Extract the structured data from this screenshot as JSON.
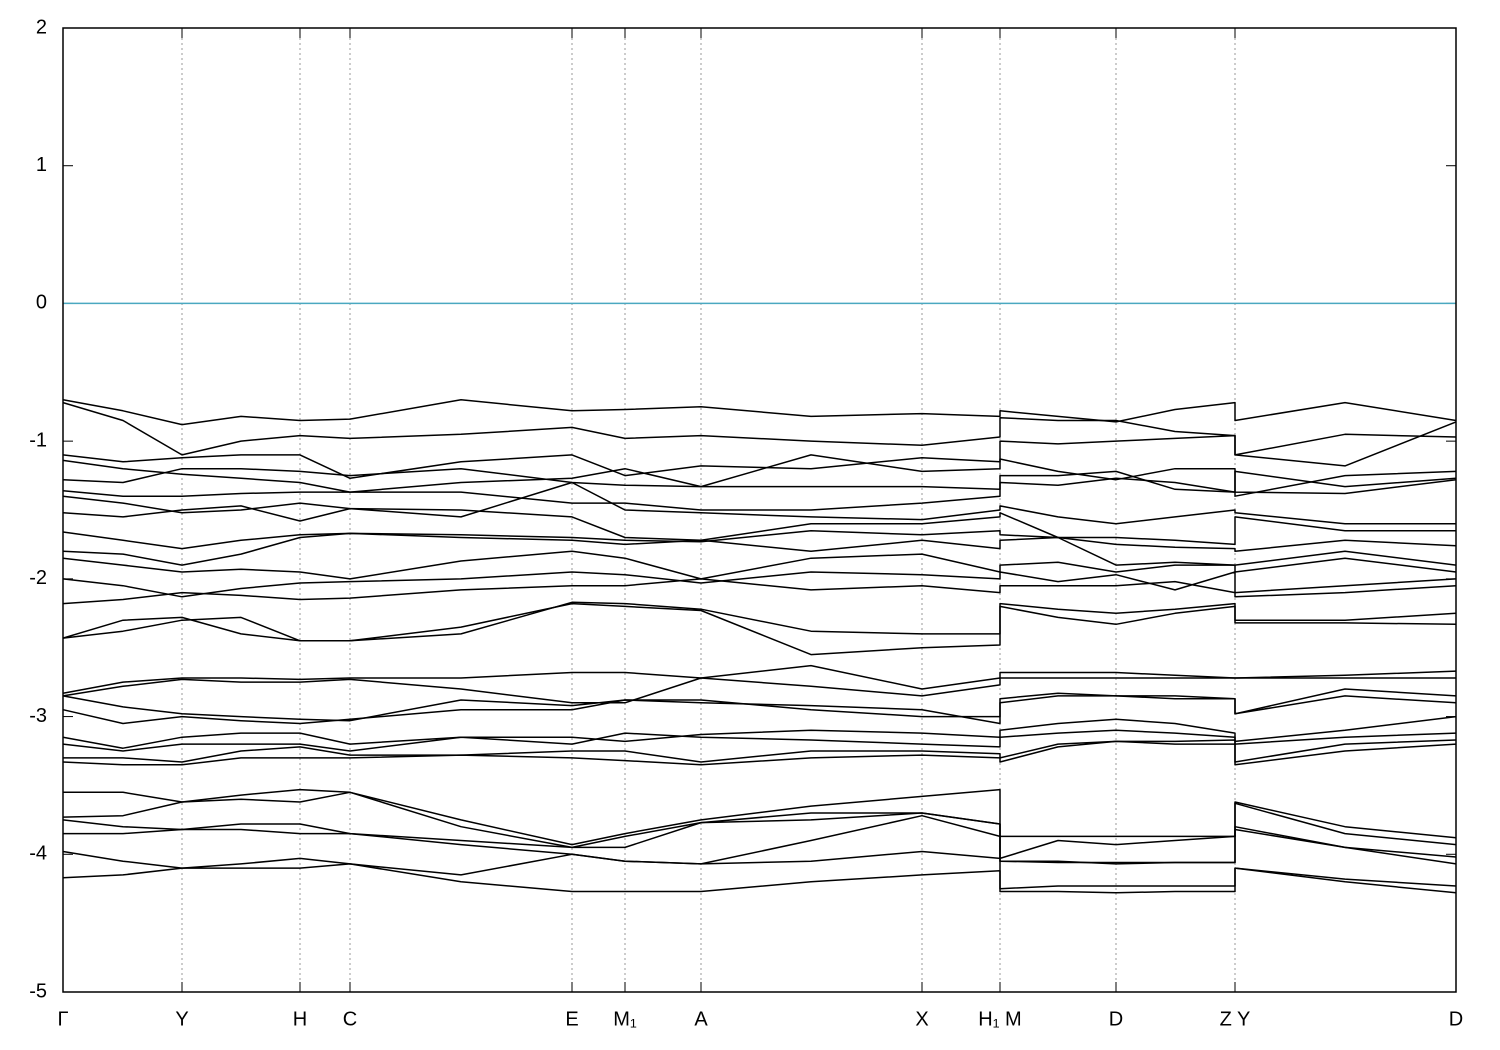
{
  "chart_data": {
    "type": "line",
    "x": [
      0,
      60,
      119,
      178,
      237,
      287,
      398,
      509,
      562,
      638,
      748,
      859,
      937,
      937,
      995,
      1053,
      1112,
      1172,
      1172,
      1282,
      1393
    ],
    "xlim": [
      0,
      1393
    ],
    "xticks": [
      {
        "value": 0,
        "label": "Γ"
      },
      {
        "value": 119,
        "label": "Y"
      },
      {
        "value": 237,
        "label": "H"
      },
      {
        "value": 287,
        "label": "C"
      },
      {
        "value": 509,
        "label": "E"
      },
      {
        "value": 562,
        "label": "M₁"
      },
      {
        "value": 638,
        "label": "A"
      },
      {
        "value": 859,
        "label": "X"
      },
      {
        "value": 937,
        "label": "H₁ M"
      },
      {
        "value": 1053,
        "label": "D"
      },
      {
        "value": 1172,
        "label": "Z Y"
      },
      {
        "value": 1393,
        "label": "D"
      }
    ],
    "ylim": [
      -5,
      2
    ],
    "yticks": [
      -5,
      -4,
      -3,
      -2,
      -1,
      0,
      1,
      2
    ],
    "grid": "x",
    "color": "#000000",
    "reference_line": {
      "value": 0,
      "color": "#4aa8c0"
    },
    "series": [
      {
        "values": [
          -0.7,
          -0.78,
          -0.88,
          -0.82,
          -0.85,
          -0.84,
          -0.7,
          -0.78,
          -0.77,
          -0.75,
          -0.82,
          -0.8,
          -0.82,
          -0.78,
          -0.82,
          -0.86,
          -0.77,
          -0.72,
          -0.85,
          -0.72,
          -0.85
        ]
      },
      {
        "values": [
          -0.72,
          -0.85,
          -1.1,
          -1.0,
          -0.96,
          -0.98,
          -0.95,
          -0.9,
          -0.98,
          -0.96,
          -1.0,
          -1.03,
          -0.97,
          -0.83,
          -0.85,
          -0.85,
          -0.93,
          -0.96,
          -1.1,
          -0.95,
          -0.97
        ]
      },
      {
        "values": [
          -1.1,
          -1.15,
          -1.12,
          -1.1,
          -1.1,
          -1.27,
          -1.15,
          -1.1,
          -1.25,
          -1.18,
          -1.2,
          -1.12,
          -1.15,
          -1.0,
          -1.02,
          -1.0,
          -0.98,
          -0.96,
          -1.1,
          -1.18,
          -0.86
        ]
      },
      {
        "values": [
          -1.14,
          -1.2,
          -1.24,
          -1.27,
          -1.3,
          -1.37,
          -1.3,
          -1.27,
          -1.2,
          -1.33,
          -1.1,
          -1.22,
          -1.2,
          -1.13,
          -1.22,
          -1.28,
          -1.2,
          -1.2,
          -1.4,
          -1.25,
          -1.22
        ]
      },
      {
        "values": [
          -1.28,
          -1.3,
          -1.2,
          -1.2,
          -1.22,
          -1.25,
          -1.2,
          -1.3,
          -1.32,
          -1.33,
          -1.33,
          -1.33,
          -1.35,
          -1.25,
          -1.25,
          -1.22,
          -1.35,
          -1.37,
          -1.22,
          -1.33,
          -1.27
        ]
      },
      {
        "values": [
          -1.36,
          -1.4,
          -1.4,
          -1.38,
          -1.37,
          -1.37,
          -1.37,
          -1.45,
          -1.45,
          -1.5,
          -1.5,
          -1.45,
          -1.4,
          -1.3,
          -1.32,
          -1.27,
          -1.3,
          -1.37,
          -1.37,
          -1.38,
          -1.28
        ]
      },
      {
        "values": [
          -1.4,
          -1.45,
          -1.52,
          -1.5,
          -1.45,
          -1.49,
          -1.55,
          -1.3,
          -1.5,
          -1.52,
          -1.55,
          -1.57,
          -1.5,
          -1.47,
          -1.55,
          -1.6,
          -1.55,
          -1.5,
          -1.52,
          -1.6,
          -1.6
        ]
      },
      {
        "values": [
          -1.52,
          -1.55,
          -1.5,
          -1.47,
          -1.58,
          -1.49,
          -1.5,
          -1.55,
          -1.7,
          -1.72,
          -1.6,
          -1.6,
          -1.55,
          -1.52,
          -1.7,
          -1.7,
          -1.72,
          -1.75,
          -1.55,
          -1.65,
          -1.65
        ]
      },
      {
        "values": [
          -1.66,
          -1.72,
          -1.78,
          -1.72,
          -1.68,
          -1.67,
          -1.68,
          -1.7,
          -1.72,
          -1.73,
          -1.65,
          -1.68,
          -1.65,
          -1.68,
          -1.7,
          -1.75,
          -1.77,
          -1.78,
          -1.8,
          -1.72,
          -1.76
        ]
      },
      {
        "values": [
          -1.8,
          -1.82,
          -1.9,
          -1.82,
          -1.7,
          -1.67,
          -1.7,
          -1.72,
          -1.75,
          -1.72,
          -1.8,
          -1.72,
          -1.78,
          -1.72,
          -1.7,
          -1.9,
          -1.88,
          -1.9,
          -1.9,
          -1.8,
          -1.9
        ]
      },
      {
        "values": [
          -1.85,
          -1.9,
          -1.95,
          -1.93,
          -1.95,
          -2.0,
          -1.87,
          -1.8,
          -1.85,
          -2.0,
          -1.85,
          -1.82,
          -1.95,
          -1.9,
          -1.88,
          -1.95,
          -1.9,
          -1.9,
          -1.95,
          -1.85,
          -1.95
        ]
      },
      {
        "values": [
          -2.0,
          -2.05,
          -2.13,
          -2.07,
          -2.03,
          -2.02,
          -2.0,
          -1.95,
          -1.97,
          -2.03,
          -1.95,
          -1.97,
          -2.0,
          -1.95,
          -2.02,
          -1.97,
          -2.08,
          -1.95,
          -2.1,
          -2.05,
          -2.0
        ]
      },
      {
        "values": [
          -2.18,
          -2.15,
          -2.1,
          -2.12,
          -2.15,
          -2.14,
          -2.08,
          -2.05,
          -2.05,
          -2.0,
          -2.08,
          -2.05,
          -2.1,
          -2.05,
          -2.05,
          -2.05,
          -2.02,
          -2.1,
          -2.13,
          -2.1,
          -2.05
        ]
      },
      {
        "values": [
          -2.43,
          -2.3,
          -2.28,
          -2.4,
          -2.45,
          -2.45,
          -2.4,
          -2.17,
          -2.18,
          -2.22,
          -2.38,
          -2.4,
          -2.4,
          -2.18,
          -2.22,
          -2.25,
          -2.22,
          -2.18,
          -2.3,
          -2.3,
          -2.25
        ]
      },
      {
        "values": [
          -2.43,
          -2.38,
          -2.3,
          -2.28,
          -2.45,
          -2.45,
          -2.35,
          -2.18,
          -2.2,
          -2.23,
          -2.55,
          -2.5,
          -2.48,
          -2.2,
          -2.28,
          -2.33,
          -2.25,
          -2.2,
          -2.32,
          -2.32,
          -2.33
        ]
      },
      {
        "values": [
          -2.83,
          -2.75,
          -2.72,
          -2.72,
          -2.73,
          -2.72,
          -2.72,
          -2.68,
          -2.68,
          -2.72,
          -2.63,
          -2.8,
          -2.72,
          -2.68,
          -2.68,
          -2.68,
          -2.7,
          -2.72,
          -2.72,
          -2.7,
          -2.67
        ]
      },
      {
        "values": [
          -2.85,
          -2.78,
          -2.73,
          -2.75,
          -2.75,
          -2.73,
          -2.8,
          -2.9,
          -2.9,
          -2.72,
          -2.78,
          -2.85,
          -2.77,
          -2.72,
          -2.72,
          -2.72,
          -2.72,
          -2.72,
          -2.72,
          -2.72,
          -2.72
        ]
      },
      {
        "values": [
          -2.85,
          -2.93,
          -2.98,
          -3.0,
          -3.02,
          -3.03,
          -2.88,
          -2.92,
          -2.88,
          -2.9,
          -2.92,
          -2.95,
          -3.05,
          -2.87,
          -2.83,
          -2.85,
          -2.85,
          -2.87,
          -2.98,
          -2.8,
          -2.85
        ]
      },
      {
        "values": [
          -2.95,
          -3.05,
          -3.0,
          -3.03,
          -3.05,
          -3.02,
          -2.95,
          -2.95,
          -2.88,
          -2.88,
          -2.95,
          -3.0,
          -3.0,
          -2.9,
          -2.85,
          -2.85,
          -2.87,
          -2.87,
          -2.98,
          -2.85,
          -2.9
        ]
      },
      {
        "values": [
          -3.15,
          -3.23,
          -3.15,
          -3.12,
          -3.12,
          -3.2,
          -3.15,
          -3.15,
          -3.18,
          -3.13,
          -3.1,
          -3.12,
          -3.15,
          -3.1,
          -3.05,
          -3.02,
          -3.05,
          -3.12,
          -3.18,
          -3.1,
          -3.0
        ]
      },
      {
        "values": [
          -3.2,
          -3.25,
          -3.2,
          -3.2,
          -3.2,
          -3.25,
          -3.15,
          -3.2,
          -3.12,
          -3.15,
          -3.17,
          -3.2,
          -3.22,
          -3.15,
          -3.12,
          -3.1,
          -3.12,
          -3.15,
          -3.2,
          -3.15,
          -3.12
        ]
      },
      {
        "values": [
          -3.3,
          -3.3,
          -3.33,
          -3.25,
          -3.22,
          -3.28,
          -3.28,
          -3.25,
          -3.25,
          -3.33,
          -3.25,
          -3.25,
          -3.27,
          -3.3,
          -3.2,
          -3.18,
          -3.18,
          -3.17,
          -3.33,
          -3.2,
          -3.17
        ]
      },
      {
        "values": [
          -3.33,
          -3.35,
          -3.35,
          -3.3,
          -3.3,
          -3.3,
          -3.28,
          -3.3,
          -3.32,
          -3.35,
          -3.3,
          -3.28,
          -3.3,
          -3.33,
          -3.22,
          -3.18,
          -3.2,
          -3.2,
          -3.35,
          -3.25,
          -3.2
        ]
      },
      {
        "values": [
          -3.55,
          -3.55,
          -3.62,
          -3.57,
          -3.53,
          -3.55,
          -3.75,
          -3.93,
          -3.85,
          -3.75,
          -3.65,
          -3.58,
          -3.53,
          -3.87,
          -3.87,
          -3.87,
          -3.87,
          -3.87,
          -3.62,
          -3.8,
          -3.88
        ]
      },
      {
        "values": [
          -3.73,
          -3.72,
          -3.62,
          -3.6,
          -3.62,
          -3.55,
          -3.8,
          -3.95,
          -3.87,
          -3.77,
          -3.7,
          -3.7,
          -3.78,
          -4.03,
          -3.9,
          -3.93,
          -3.9,
          -3.87,
          -3.63,
          -3.85,
          -3.93
        ]
      },
      {
        "values": [
          -3.75,
          -3.8,
          -3.82,
          -3.78,
          -3.78,
          -3.85,
          -3.9,
          -3.95,
          -3.95,
          -3.77,
          -3.75,
          -3.7,
          -3.78,
          -4.05,
          -4.05,
          -4.07,
          -4.06,
          -4.06,
          -3.8,
          -3.95,
          -4.02
        ]
      },
      {
        "values": [
          -3.85,
          -3.85,
          -3.82,
          -3.82,
          -3.85,
          -3.85,
          -3.93,
          -4.0,
          -4.05,
          -4.07,
          -3.9,
          -3.72,
          -3.87,
          -4.05,
          -4.06,
          -4.06,
          -4.06,
          -4.06,
          -3.82,
          -3.95,
          -4.07
        ]
      },
      {
        "values": [
          -3.98,
          -4.05,
          -4.1,
          -4.07,
          -4.03,
          -4.07,
          -4.15,
          -4.0,
          -4.05,
          -4.07,
          -4.05,
          -3.98,
          -4.03,
          -4.25,
          -4.23,
          -4.23,
          -4.23,
          -4.23,
          -4.1,
          -4.18,
          -4.23
        ]
      },
      {
        "values": [
          -4.17,
          -4.15,
          -4.1,
          -4.1,
          -4.1,
          -4.07,
          -4.2,
          -4.27,
          -4.27,
          -4.27,
          -4.2,
          -4.15,
          -4.12,
          -4.27,
          -4.27,
          -4.28,
          -4.27,
          -4.27,
          -4.1,
          -4.2,
          -4.28
        ]
      }
    ]
  }
}
